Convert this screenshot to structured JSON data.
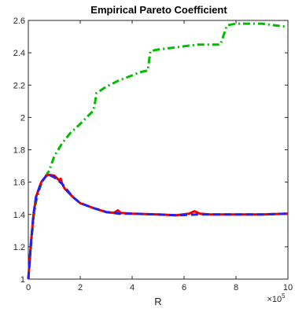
{
  "chart_data": {
    "type": "line",
    "title": "Empirical Pareto Coefficient",
    "xlabel": "R",
    "ylabel": "",
    "x_multiplier_base": "×10",
    "x_multiplier_exponent": "5",
    "xlim": [
      0,
      10
    ],
    "ylim": [
      1,
      2.6
    ],
    "x_ticks": [
      0,
      2,
      4,
      6,
      8,
      10
    ],
    "y_ticks": [
      1,
      1.2,
      1.4,
      1.6,
      1.8,
      2,
      2.2,
      2.4,
      2.6
    ],
    "x_tick_labels": [
      "0",
      "2",
      "4",
      "6",
      "8",
      "10"
    ],
    "y_tick_labels": [
      "1",
      "1.2",
      "1.4",
      "1.6",
      "1.8",
      "2",
      "2.2",
      "2.4",
      "2.6"
    ],
    "grid": false,
    "series": [
      {
        "color": "#00bb00",
        "style": "dashdot",
        "points": [
          [
            0,
            1.0
          ],
          [
            0.1,
            1.2
          ],
          [
            0.2,
            1.38
          ],
          [
            0.3,
            1.48
          ],
          [
            0.4,
            1.54
          ],
          [
            0.5,
            1.59
          ],
          [
            0.6,
            1.62
          ],
          [
            0.8,
            1.67
          ],
          [
            1.0,
            1.76
          ],
          [
            1.3,
            1.84
          ],
          [
            1.6,
            1.9
          ],
          [
            2.0,
            1.96
          ],
          [
            2.3,
            2.01
          ],
          [
            2.5,
            2.04
          ],
          [
            2.58,
            2.1
          ],
          [
            2.62,
            2.15
          ],
          [
            3.0,
            2.19
          ],
          [
            3.5,
            2.23
          ],
          [
            4.0,
            2.26
          ],
          [
            4.3,
            2.28
          ],
          [
            4.6,
            2.29
          ],
          [
            4.65,
            2.35
          ],
          [
            4.7,
            2.41
          ],
          [
            5.0,
            2.42
          ],
          [
            5.5,
            2.43
          ],
          [
            6.0,
            2.44
          ],
          [
            6.5,
            2.45
          ],
          [
            7.0,
            2.45
          ],
          [
            7.4,
            2.45
          ],
          [
            7.55,
            2.52
          ],
          [
            7.65,
            2.57
          ],
          [
            8.0,
            2.58
          ],
          [
            9.0,
            2.58
          ],
          [
            9.5,
            2.57
          ],
          [
            10.0,
            2.56
          ]
        ]
      },
      {
        "color": "#ee0000",
        "style": "solid",
        "points": [
          [
            0,
            1.0
          ],
          [
            0.1,
            1.22
          ],
          [
            0.2,
            1.4
          ],
          [
            0.3,
            1.51
          ],
          [
            0.5,
            1.6
          ],
          [
            0.7,
            1.64
          ],
          [
            0.8,
            1.645
          ],
          [
            1.0,
            1.64
          ],
          [
            1.2,
            1.61
          ],
          [
            1.25,
            1.62
          ],
          [
            1.3,
            1.59
          ],
          [
            1.4,
            1.56
          ],
          [
            1.7,
            1.51
          ],
          [
            2.0,
            1.47
          ],
          [
            2.5,
            1.44
          ],
          [
            3.0,
            1.415
          ],
          [
            3.3,
            1.41
          ],
          [
            3.45,
            1.425
          ],
          [
            3.55,
            1.41
          ],
          [
            4.0,
            1.405
          ],
          [
            5.0,
            1.4
          ],
          [
            5.7,
            1.395
          ],
          [
            6.2,
            1.405
          ],
          [
            6.4,
            1.42
          ],
          [
            6.6,
            1.405
          ],
          [
            7.0,
            1.4
          ],
          [
            8.0,
            1.4
          ],
          [
            9.0,
            1.4
          ],
          [
            10.0,
            1.405
          ]
        ]
      },
      {
        "color": "#2222ee",
        "style": "dashed",
        "points": [
          [
            0,
            1.0
          ],
          [
            0.1,
            1.22
          ],
          [
            0.2,
            1.4
          ],
          [
            0.3,
            1.51
          ],
          [
            0.5,
            1.6
          ],
          [
            0.7,
            1.64
          ],
          [
            0.8,
            1.645
          ],
          [
            1.0,
            1.63
          ],
          [
            1.3,
            1.59
          ],
          [
            1.7,
            1.51
          ],
          [
            2.0,
            1.47
          ],
          [
            2.5,
            1.44
          ],
          [
            3.0,
            1.415
          ],
          [
            3.5,
            1.405
          ],
          [
            4.0,
            1.405
          ],
          [
            5.0,
            1.4
          ],
          [
            5.7,
            1.395
          ],
          [
            6.5,
            1.4
          ],
          [
            7.0,
            1.4
          ],
          [
            8.0,
            1.4
          ],
          [
            9.0,
            1.4
          ],
          [
            10.0,
            1.405
          ]
        ]
      }
    ]
  }
}
